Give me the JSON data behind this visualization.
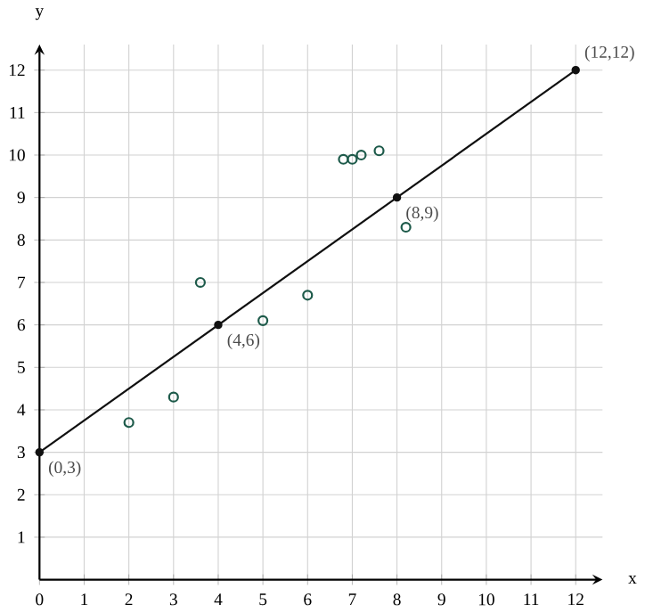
{
  "chart_data": {
    "type": "scatter",
    "xlabel": "x",
    "ylabel": "y",
    "xlim": [
      0,
      12.6
    ],
    "ylim": [
      0,
      12.6
    ],
    "xticks": [
      0,
      1,
      2,
      3,
      4,
      5,
      6,
      7,
      8,
      9,
      10,
      11,
      12
    ],
    "yticks": [
      1,
      2,
      3,
      4,
      5,
      6,
      7,
      8,
      9,
      10,
      11,
      12
    ],
    "grid": true,
    "series": [
      {
        "type": "scatter",
        "color": "#1d5a4a",
        "marker": "circle",
        "x": [
          2,
          3,
          3.6,
          5,
          6,
          6.8,
          7,
          7.2,
          7.6,
          8.2
        ],
        "values": [
          3.7,
          4.3,
          7,
          6.1,
          6.7,
          9.9,
          9.9,
          10,
          10.1,
          8.3
        ]
      },
      {
        "type": "line",
        "color": "#111111",
        "marker": "circle",
        "line_style": "solid",
        "x": [
          0,
          4,
          8,
          12
        ],
        "values": [
          3,
          6,
          9,
          12
        ]
      }
    ],
    "annotations": [
      {
        "text": "(0,3)",
        "x": 0,
        "y": 3
      },
      {
        "text": "(4,6)",
        "x": 4,
        "y": 6
      },
      {
        "text": "(8,9)",
        "x": 8,
        "y": 9
      },
      {
        "text": "(12,12)",
        "x": 12,
        "y": 12
      }
    ]
  }
}
